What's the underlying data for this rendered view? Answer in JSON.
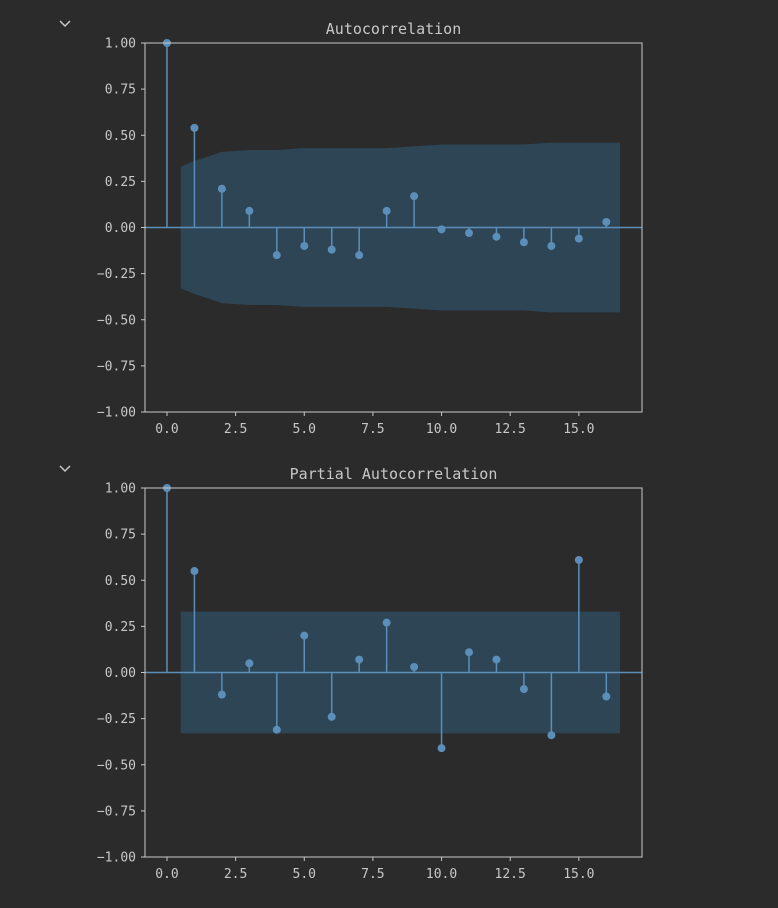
{
  "colors": {
    "background": "#2b2b2b",
    "axes_frame": "#c8c8c8",
    "text": "#c8c8c8",
    "stem": "#5b8fba",
    "marker": "#5b8fba",
    "confidence_band": "#2e4556"
  },
  "toggle_icon": "chevron-down-icon",
  "chart_data": [
    {
      "type": "stem",
      "title": "Autocorrelation",
      "xlabel": "",
      "ylabel": "",
      "xlim": [
        -0.8,
        17.3
      ],
      "ylim": [
        -1.0,
        1.0
      ],
      "xticks": [
        0,
        2.5,
        5,
        7.5,
        10,
        12.5,
        15
      ],
      "xtick_labels": [
        "0.0",
        "2.5",
        "5.0",
        "7.5",
        "10.0",
        "12.5",
        "15.0"
      ],
      "yticks": [
        1.0,
        0.75,
        0.5,
        0.25,
        0.0,
        -0.25,
        -0.5,
        -0.75,
        -1.0
      ],
      "ytick_labels": [
        "1.00",
        "0.75",
        "0.50",
        "0.25",
        "0.00",
        "−0.25",
        "−0.50",
        "−0.75",
        "−1.00"
      ],
      "grid": false,
      "lags": [
        0,
        1,
        2,
        3,
        4,
        5,
        6,
        7,
        8,
        9,
        10,
        11,
        12,
        13,
        14,
        15,
        16
      ],
      "values": [
        1.0,
        0.54,
        0.21,
        0.09,
        -0.15,
        -0.1,
        -0.12,
        -0.15,
        0.09,
        0.17,
        -0.01,
        -0.03,
        -0.05,
        -0.08,
        -0.1,
        -0.06,
        0.03
      ],
      "confidence_band": {
        "x": [
          0.5,
          1,
          2,
          3,
          4,
          5,
          6,
          7,
          8,
          9,
          10,
          11,
          12,
          13,
          14,
          15,
          16,
          16.5
        ],
        "upper": [
          0.33,
          0.36,
          0.41,
          0.42,
          0.42,
          0.43,
          0.43,
          0.43,
          0.43,
          0.44,
          0.45,
          0.45,
          0.45,
          0.45,
          0.46,
          0.46,
          0.46,
          0.46
        ]
      }
    },
    {
      "type": "stem",
      "title": "Partial Autocorrelation",
      "xlabel": "",
      "ylabel": "",
      "xlim": [
        -0.8,
        17.3
      ],
      "ylim": [
        -1.0,
        1.0
      ],
      "xticks": [
        0,
        2.5,
        5,
        7.5,
        10,
        12.5,
        15
      ],
      "xtick_labels": [
        "0.0",
        "2.5",
        "5.0",
        "7.5",
        "10.0",
        "12.5",
        "15.0"
      ],
      "yticks": [
        1.0,
        0.75,
        0.5,
        0.25,
        0.0,
        -0.25,
        -0.5,
        -0.75,
        -1.0
      ],
      "ytick_labels": [
        "1.00",
        "0.75",
        "0.50",
        "0.25",
        "0.00",
        "−0.25",
        "−0.50",
        "−0.75",
        "−1.00"
      ],
      "grid": false,
      "lags": [
        0,
        1,
        2,
        3,
        4,
        5,
        6,
        7,
        8,
        9,
        10,
        11,
        12,
        13,
        14,
        15,
        16
      ],
      "values": [
        1.0,
        0.55,
        -0.12,
        0.05,
        -0.31,
        0.2,
        -0.24,
        0.07,
        0.27,
        0.03,
        -0.41,
        0.11,
        0.07,
        -0.09,
        -0.34,
        0.61,
        -0.13
      ],
      "confidence_band": {
        "x": [
          0.5,
          16.5
        ],
        "upper": [
          0.33,
          0.33
        ]
      }
    }
  ]
}
